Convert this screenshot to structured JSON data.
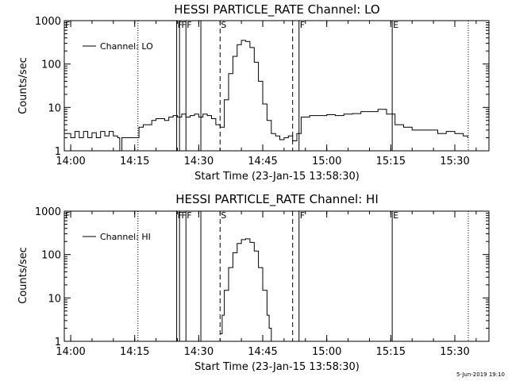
{
  "stamp": "5-Jun-2019 19:10",
  "chart_data": [
    {
      "type": "line",
      "title": "HESSI PARTICLE_RATE Channel: LO",
      "xlabel": "Start Time (23-Jan-15 13:58:30)",
      "ylabel": "Counts/sec",
      "yscale": "log",
      "xlim": [
        "13:58:30",
        "15:38:00"
      ],
      "ylim": [
        1,
        1000
      ],
      "xticks": [
        "14:00",
        "14:15",
        "14:30",
        "14:45",
        "15:00",
        "15:15",
        "15:30"
      ],
      "yticks": [
        "1",
        "10",
        "100",
        "1000"
      ],
      "legend": {
        "label": "Channel: LO",
        "placement": "top-left"
      },
      "marker_labels": [
        "F",
        "F",
        "F",
        "S",
        "F",
        "E"
      ],
      "series": [
        {
          "name": "Channel: LO",
          "x": [
            "13:58:30",
            "14:00:00",
            "14:01:00",
            "14:02:00",
            "14:03:00",
            "14:04:00",
            "14:05:00",
            "14:06:00",
            "14:07:00",
            "14:08:00",
            "14:09:00",
            "14:10:00",
            "14:11:00",
            "14:11:30",
            "14:12:00",
            "14:13:00",
            "14:14:00",
            "14:15:00",
            "14:16:00",
            "14:17:00",
            "14:18:00",
            "14:19:00",
            "14:20:00",
            "14:21:00",
            "14:22:00",
            "14:23:00",
            "14:24:00",
            "14:25:00",
            "14:26:00",
            "14:27:00",
            "14:28:00",
            "14:29:00",
            "14:30:00",
            "14:31:00",
            "14:32:00",
            "14:33:00",
            "14:34:00",
            "14:35:00",
            "14:36:00",
            "14:37:00",
            "14:38:00",
            "14:39:00",
            "14:40:00",
            "14:41:00",
            "14:42:00",
            "14:43:00",
            "14:44:00",
            "14:45:00",
            "14:46:00",
            "14:47:00",
            "14:48:00",
            "14:49:00",
            "14:50:00",
            "14:51:00",
            "14:52:00",
            "14:53:00",
            "14:54:00",
            "14:55:00",
            "14:56:00",
            "14:58:00",
            "15:00:00",
            "15:02:00",
            "15:04:00",
            "15:06:00",
            "15:08:00",
            "15:10:00",
            "15:12:00",
            "15:14:00",
            "15:15:00",
            "15:16:00",
            "15:18:00",
            "15:20:00",
            "15:22:00",
            "15:24:00",
            "15:26:00",
            "15:28:00",
            "15:30:00",
            "15:32:00",
            "15:33:00"
          ],
          "y": [
            2.5,
            2.0,
            2.8,
            2.0,
            2.8,
            2.0,
            2.6,
            2.0,
            2.8,
            2.2,
            2.8,
            2.2,
            2.0,
            1.0,
            2.0,
            2.0,
            2.0,
            2.0,
            3.5,
            4.0,
            4.0,
            5.0,
            5.5,
            5.5,
            5.0,
            6.0,
            6.5,
            6.0,
            7.0,
            6.0,
            6.5,
            7.0,
            6.0,
            7.0,
            6.5,
            5.5,
            4.0,
            3.5,
            15.0,
            60.0,
            150.0,
            280.0,
            350.0,
            330.0,
            240.0,
            110.0,
            40.0,
            12.0,
            5.0,
            2.5,
            2.2,
            1.8,
            2.0,
            2.2,
            1.7,
            2.5,
            6.0,
            6.0,
            6.5,
            6.5,
            6.8,
            6.5,
            7.0,
            7.2,
            8.0,
            8.0,
            9.0,
            7.0,
            7.0,
            4.0,
            3.5,
            3.0,
            3.0,
            3.0,
            2.5,
            2.8,
            2.5,
            2.2,
            2.0
          ]
        }
      ]
    },
    {
      "type": "line",
      "title": "HESSI PARTICLE_RATE Channel: HI",
      "xlabel": "Start Time (23-Jan-15 13:58:30)",
      "ylabel": "Counts/sec",
      "yscale": "log",
      "xlim": [
        "13:58:30",
        "15:38:00"
      ],
      "ylim": [
        1,
        1000
      ],
      "xticks": [
        "14:00",
        "14:15",
        "14:30",
        "14:45",
        "15:00",
        "15:15",
        "15:30"
      ],
      "yticks": [
        "1",
        "10",
        "100",
        "1000"
      ],
      "legend": {
        "label": "Channel: HI",
        "placement": "top-left"
      },
      "marker_labels": [
        "F",
        "F",
        "F",
        "S",
        "F",
        "E"
      ],
      "series": [
        {
          "name": "Channel: HI",
          "x": [
            "14:35:00",
            "14:35:30",
            "14:36:00",
            "14:37:00",
            "14:38:00",
            "14:39:00",
            "14:40:00",
            "14:41:00",
            "14:42:00",
            "14:43:00",
            "14:44:00",
            "14:45:00",
            "14:46:00",
            "14:46:30",
            "14:47:00"
          ],
          "y": [
            1.5,
            4.0,
            15.0,
            50.0,
            110.0,
            180.0,
            220.0,
            230.0,
            190.0,
            120.0,
            50.0,
            15.0,
            4.0,
            2.0,
            1.0
          ]
        }
      ]
    }
  ]
}
